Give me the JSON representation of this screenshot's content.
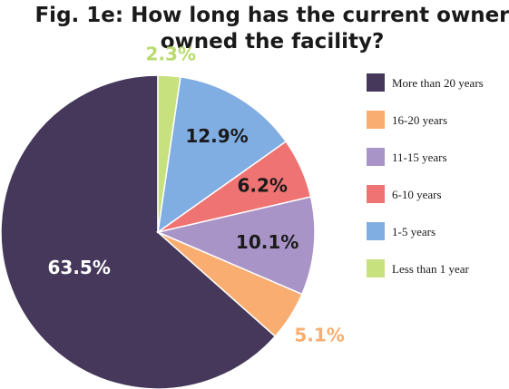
{
  "chart_data": {
    "type": "pie",
    "title_lines": [
      "Fig. 1e: How long has the current owner",
      "owned the facility?"
    ],
    "slices": [
      {
        "label": "More than 20 years",
        "value": 63.5,
        "display": "63.5%",
        "color": "#45385a",
        "label_color": "#ffffff",
        "label_position": "inside"
      },
      {
        "label": "16-20 years",
        "value": 5.1,
        "display": "5.1%",
        "color": "#f9ad70",
        "label_color": "#f9ad70",
        "label_position": "outside"
      },
      {
        "label": "11-15 years",
        "value": 10.1,
        "display": "10.1%",
        "color": "#a994c8",
        "label_color": "#1a1a1a",
        "label_position": "inside"
      },
      {
        "label": "6-10 years",
        "value": 6.2,
        "display": "6.2%",
        "color": "#ef7373",
        "label_color": "#1a1a1a",
        "label_position": "inside"
      },
      {
        "label": "1-5 years",
        "value": 12.9,
        "display": "12.9%",
        "color": "#80ade2",
        "label_color": "#1a1a1a",
        "label_position": "inside"
      },
      {
        "label": "Less than 1 year",
        "value": 2.3,
        "display": "2.3%",
        "color": "#c7e17e",
        "label_color": "#b9db6e",
        "label_position": "outside"
      }
    ],
    "start": "top",
    "direction": "counterclockwise",
    "legend_position": "right"
  }
}
